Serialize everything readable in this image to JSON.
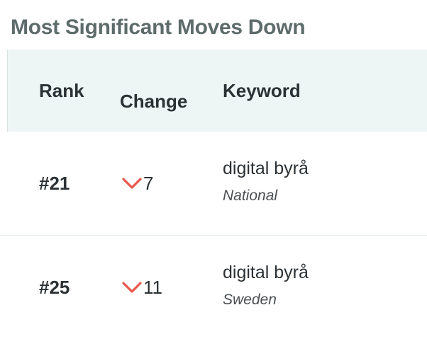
{
  "title": "Most Significant Moves Down",
  "columns": {
    "rank": "Rank",
    "change": "Change",
    "keyword": "Keyword"
  },
  "rows": [
    {
      "rank": "#21",
      "change": "7",
      "change_icon": "chevron-down-icon",
      "keyword": "digital byrå",
      "location": "National"
    },
    {
      "rank": "#25",
      "change": "11",
      "change_icon": "chevron-down-icon",
      "keyword": "digital byrå",
      "location": "Sweden"
    }
  ],
  "colors": {
    "down_arrow": "#e8574c",
    "header_bg": "#eef6f5",
    "title": "#5e6b6b"
  }
}
